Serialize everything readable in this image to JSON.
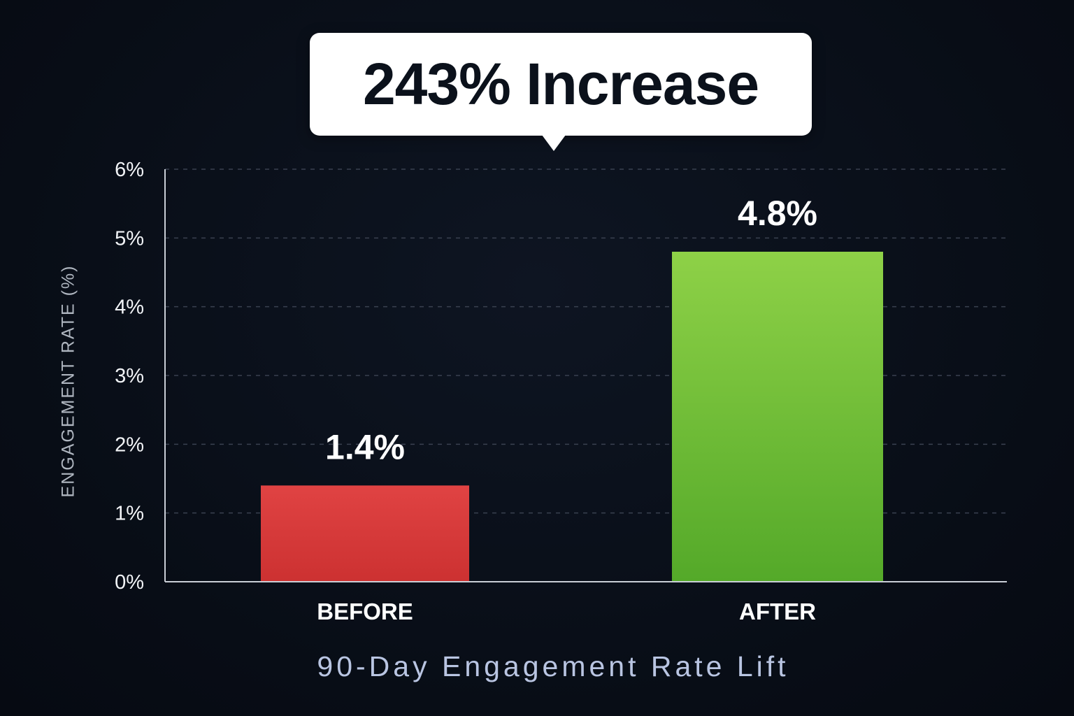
{
  "callout": {
    "text": "243% Increase"
  },
  "chart_data": {
    "type": "bar",
    "subtitle": "90-Day Engagement Rate Lift",
    "ylabel": "ENGAGEMENT RATE (%)",
    "xlabel": "",
    "categories": [
      "BEFORE",
      "AFTER"
    ],
    "values": [
      1.4,
      4.8
    ],
    "value_labels": [
      "1.4%",
      "4.8%"
    ],
    "ylim": [
      0,
      6
    ],
    "yticks": [
      0,
      1,
      2,
      3,
      4,
      5,
      6
    ],
    "ytick_labels": [
      "0%",
      "1%",
      "2%",
      "3%",
      "4%",
      "5%",
      "6%"
    ],
    "grid": true,
    "legend": "none",
    "bar_colors": [
      "#d93a3a",
      "#6ec13c"
    ]
  },
  "colors": {
    "background": "#0b111b",
    "before_bar": "#d93a3a",
    "after_bar": "#6ec13c",
    "gridline": "#3a4150",
    "axis": "#c9ced6",
    "subtitle": "#b9c5e2"
  }
}
